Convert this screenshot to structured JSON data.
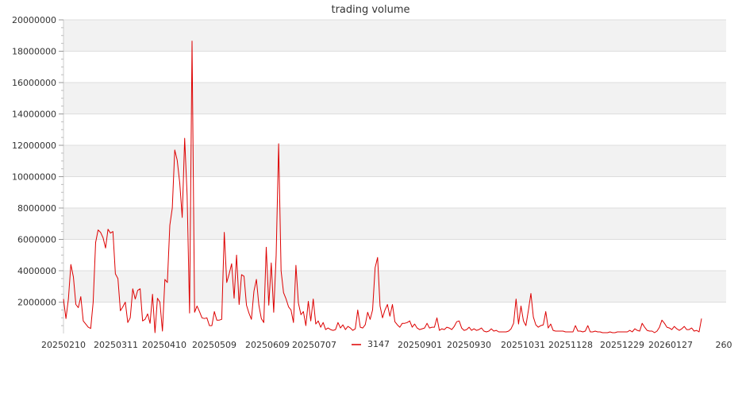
{
  "chart_data": {
    "type": "line",
    "title": "trading volume",
    "xlabel": "",
    "ylabel": "",
    "ylim": [
      0,
      20000000
    ],
    "yticks": [
      2000000,
      4000000,
      6000000,
      8000000,
      10000000,
      12000000,
      14000000,
      16000000,
      18000000,
      20000000
    ],
    "ytick_labels": [
      "2000000",
      "4000000",
      "6000000",
      "8000000",
      "10000000",
      "12000000",
      "14000000",
      "16000000",
      "18000000",
      "20000000"
    ],
    "xtick_labels": [
      "20250210",
      "20250311",
      "20250410",
      "20250509",
      "20250609",
      "20250707",
      "20250901",
      "20250930",
      "20251031",
      "20251128",
      "20251229",
      "20260127",
      "260"
    ],
    "grid": "alternating horizontal bands",
    "legend": "bottom-center",
    "series": [
      {
        "name": "3147",
        "color": "#dd0000",
        "values": [
          2200000,
          950000,
          2200000,
          4400000,
          3600000,
          1850000,
          1650000,
          2350000,
          800000,
          600000,
          400000,
          320000,
          2000000,
          5800000,
          6600000,
          6450000,
          6100000,
          5450000,
          6650000,
          6400000,
          6500000,
          3800000,
          3500000,
          1450000,
          1700000,
          2000000,
          700000,
          1000000,
          2850000,
          2200000,
          2750000,
          2850000,
          800000,
          900000,
          1250000,
          650000,
          2500000,
          50000,
          2250000,
          2000000,
          150000,
          3450000,
          3250000,
          6900000,
          8000000,
          11700000,
          11050000,
          9600000,
          7400000,
          12450000,
          8800000,
          1300000,
          18650000,
          1350000,
          1750000,
          1400000,
          1000000,
          950000,
          1000000,
          500000,
          500000,
          1400000,
          850000,
          850000,
          900000,
          6450000,
          3250000,
          3800000,
          4450000,
          2250000,
          5000000,
          1850000,
          3750000,
          3650000,
          1800000,
          1300000,
          900000,
          2700000,
          3450000,
          1800000,
          950000,
          700000,
          5500000,
          1800000,
          4500000,
          1350000,
          5000000,
          12100000,
          4000000,
          2600000,
          2200000,
          1700000,
          1500000,
          700000,
          4350000,
          1950000,
          1200000,
          1400000,
          500000,
          2050000,
          800000,
          2200000,
          600000,
          800000,
          400000,
          700000,
          250000,
          350000,
          250000,
          200000,
          250000,
          700000,
          350000,
          550000,
          250000,
          450000,
          350000,
          200000,
          300000,
          1500000,
          400000,
          350000,
          550000,
          1350000,
          900000,
          1500000,
          4200000,
          4850000,
          1750000,
          1000000,
          1500000,
          1850000,
          1100000,
          1850000,
          750000,
          550000,
          400000,
          650000,
          650000,
          700000,
          800000,
          400000,
          600000,
          350000,
          250000,
          300000,
          350000,
          650000,
          350000,
          400000,
          400000,
          1000000,
          200000,
          300000,
          250000,
          400000,
          350000,
          250000,
          450000,
          750000,
          800000,
          350000,
          200000,
          250000,
          400000,
          200000,
          300000,
          200000,
          250000,
          350000,
          150000,
          100000,
          150000,
          300000,
          150000,
          200000,
          100000,
          100000,
          100000,
          100000,
          150000,
          300000,
          650000,
          2200000,
          600000,
          1750000,
          800000,
          500000,
          1500000,
          2550000,
          1050000,
          550000,
          400000,
          500000,
          550000,
          1400000,
          350000,
          600000,
          200000,
          150000,
          150000,
          150000,
          150000,
          100000,
          100000,
          100000,
          100000,
          500000,
          150000,
          150000,
          100000,
          150000,
          500000,
          100000,
          100000,
          150000,
          100000,
          100000,
          50000,
          50000,
          50000,
          100000,
          50000,
          50000,
          100000,
          100000,
          100000,
          100000,
          100000,
          200000,
          100000,
          300000,
          200000,
          150000,
          650000,
          400000,
          200000,
          150000,
          150000,
          50000,
          150000,
          400000,
          850000,
          650000,
          400000,
          350000,
          250000,
          450000,
          300000,
          200000,
          300000,
          450000,
          250000,
          250000,
          350000,
          150000,
          200000,
          100000,
          950000
        ]
      }
    ]
  }
}
